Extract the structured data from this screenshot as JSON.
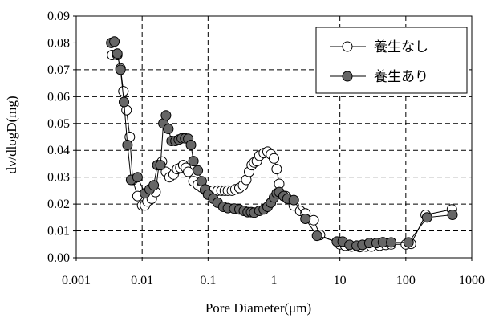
{
  "chart_data": {
    "type": "scatter",
    "xlabel": "Pore  Diameter(μm)",
    "ylabel": "dv/dlogD(mg)",
    "xscale": "log",
    "xlim": [
      0.001,
      1000
    ],
    "ylim": [
      0,
      0.09
    ],
    "x_ticks": [
      "0.001",
      "0.01",
      "0.1",
      "1",
      "10",
      "100",
      "1000"
    ],
    "y_ticks": [
      "0.00",
      "0.01",
      "0.02",
      "0.03",
      "0.04",
      "0.05",
      "0.06",
      "0.07",
      "0.08",
      "0.09"
    ],
    "grid": true,
    "legend_position": "top-right",
    "series": [
      {
        "name": "養生なし",
        "marker": "open-circle",
        "color": "#ffffff",
        "x": [
          0.0035,
          0.0042,
          0.0047,
          0.0052,
          0.0058,
          0.0065,
          0.0072,
          0.0085,
          0.01,
          0.011,
          0.012,
          0.014,
          0.016,
          0.018,
          0.02,
          0.023,
          0.026,
          0.03,
          0.034,
          0.038,
          0.042,
          0.046,
          0.05,
          0.06,
          0.07,
          0.08,
          0.09,
          0.1,
          0.12,
          0.14,
          0.16,
          0.18,
          0.2,
          0.23,
          0.26,
          0.3,
          0.34,
          0.38,
          0.42,
          0.46,
          0.5,
          0.55,
          0.6,
          0.7,
          0.8,
          0.9,
          1.0,
          1.1,
          1.2,
          1.5,
          2.0,
          2.5,
          3.0,
          4.0,
          5.0,
          10,
          12,
          15,
          20,
          25,
          30,
          40,
          50,
          60,
          100,
          120,
          200,
          500
        ],
        "y": [
          0.0755,
          0.0755,
          0.0705,
          0.062,
          0.055,
          0.045,
          0.029,
          0.023,
          0.0195,
          0.0195,
          0.021,
          0.022,
          0.0245,
          0.0345,
          0.0358,
          0.032,
          0.03,
          0.031,
          0.033,
          0.0335,
          0.0345,
          0.0335,
          0.032,
          0.0285,
          0.0272,
          0.0262,
          0.0252,
          0.0248,
          0.025,
          0.025,
          0.025,
          0.025,
          0.025,
          0.025,
          0.0255,
          0.026,
          0.027,
          0.029,
          0.032,
          0.0345,
          0.0355,
          0.036,
          0.038,
          0.039,
          0.0395,
          0.0385,
          0.037,
          0.033,
          0.0275,
          0.023,
          0.0195,
          0.0175,
          0.0165,
          0.014,
          0.0085,
          0.005,
          0.0045,
          0.0042,
          0.004,
          0.0042,
          0.0042,
          0.0045,
          0.0048,
          0.005,
          0.005,
          0.0052,
          0.016,
          0.018
        ]
      },
      {
        "name": "養生あり",
        "marker": "filled-circle",
        "color": "#666666",
        "x": [
          0.0034,
          0.0038,
          0.0042,
          0.0047,
          0.0053,
          0.006,
          0.0068,
          0.0085,
          0.011,
          0.013,
          0.015,
          0.017,
          0.019,
          0.021,
          0.023,
          0.025,
          0.028,
          0.032,
          0.036,
          0.04,
          0.045,
          0.05,
          0.055,
          0.06,
          0.07,
          0.08,
          0.09,
          0.1,
          0.12,
          0.14,
          0.17,
          0.2,
          0.25,
          0.3,
          0.35,
          0.4,
          0.45,
          0.5,
          0.6,
          0.7,
          0.8,
          0.9,
          1.0,
          1.1,
          1.2,
          1.4,
          1.6,
          2.0,
          3.0,
          4.5,
          9.0,
          11,
          14,
          18,
          22,
          28,
          36,
          45,
          60,
          110,
          210,
          510
        ],
        "y": [
          0.08,
          0.0805,
          0.076,
          0.07,
          0.058,
          0.042,
          0.029,
          0.03,
          0.024,
          0.0255,
          0.027,
          0.0345,
          0.0345,
          0.05,
          0.053,
          0.048,
          0.0435,
          0.0435,
          0.044,
          0.0445,
          0.0445,
          0.0443,
          0.042,
          0.036,
          0.0325,
          0.0285,
          0.0255,
          0.0235,
          0.022,
          0.0205,
          0.019,
          0.0185,
          0.0183,
          0.018,
          0.0175,
          0.017,
          0.017,
          0.0168,
          0.0175,
          0.018,
          0.019,
          0.0205,
          0.0225,
          0.024,
          0.0245,
          0.023,
          0.022,
          0.0215,
          0.0145,
          0.0082,
          0.006,
          0.006,
          0.0048,
          0.0045,
          0.0048,
          0.0055,
          0.0055,
          0.0058,
          0.0057,
          0.0057,
          0.015,
          0.016
        ]
      }
    ]
  }
}
